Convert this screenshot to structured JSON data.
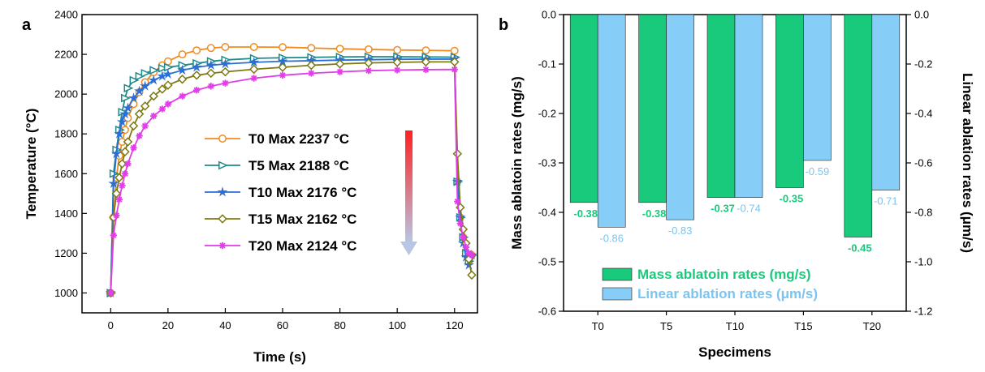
{
  "chart_data": [
    {
      "panel": "a",
      "type": "line",
      "xlabel": "Time (s)",
      "ylabel": "Temperature (°C)",
      "xlim": [
        -10,
        128
      ],
      "ylim": [
        900,
        2400
      ],
      "xticks": [
        0,
        20,
        40,
        60,
        80,
        100,
        120
      ],
      "yticks": [
        1000,
        1200,
        1400,
        1600,
        1800,
        2000,
        2200,
        2400
      ],
      "legend_position": "center",
      "arrow_colors": {
        "top": "#ff2020",
        "bottom": "#b8c6e4"
      },
      "series": [
        {
          "name": "T0",
          "label": "T0 Max 2237 °C",
          "color": "#f28a1f",
          "marker": "circle",
          "x": [
            0,
            1,
            2,
            3,
            4,
            5,
            6,
            8,
            10,
            12,
            15,
            18,
            20,
            25,
            30,
            35,
            40,
            50,
            60,
            70,
            80,
            90,
            100,
            110,
            120,
            121,
            122,
            123,
            124,
            125,
            126
          ],
          "y": [
            1000,
            1380,
            1580,
            1690,
            1760,
            1820,
            1880,
            1950,
            2010,
            2060,
            2110,
            2145,
            2165,
            2200,
            2220,
            2232,
            2237,
            2237,
            2236,
            2232,
            2228,
            2225,
            2222,
            2220,
            2218,
            1560,
            1380,
            1280,
            1200,
            1160,
            1190
          ]
        },
        {
          "name": "T5",
          "label": "T5 Max 2188 °C",
          "color": "#1f8a8a",
          "marker": "triangle-right",
          "x": [
            0,
            1,
            2,
            3,
            4,
            5,
            6,
            8,
            10,
            12,
            15,
            18,
            20,
            25,
            30,
            35,
            40,
            50,
            60,
            70,
            80,
            90,
            100,
            110,
            120,
            121,
            122,
            123,
            124,
            125,
            126
          ],
          "y": [
            1000,
            1600,
            1720,
            1820,
            1910,
            1980,
            2030,
            2070,
            2090,
            2105,
            2120,
            2130,
            2135,
            2145,
            2155,
            2165,
            2172,
            2180,
            2183,
            2185,
            2187,
            2188,
            2188,
            2187,
            2186,
            1560,
            1380,
            1280,
            1200,
            1160,
            1190
          ]
        },
        {
          "name": "T10",
          "label": "T10 Max 2176 °C",
          "color": "#2a6fd6",
          "marker": "star",
          "x": [
            0,
            1,
            2,
            3,
            4,
            5,
            6,
            8,
            10,
            12,
            15,
            18,
            20,
            25,
            30,
            35,
            40,
            50,
            60,
            70,
            80,
            90,
            100,
            110,
            120,
            121,
            122,
            123,
            124,
            125,
            126
          ],
          "y": [
            1000,
            1550,
            1700,
            1800,
            1860,
            1900,
            1930,
            1980,
            2015,
            2040,
            2070,
            2090,
            2100,
            2120,
            2135,
            2145,
            2152,
            2160,
            2165,
            2168,
            2171,
            2173,
            2175,
            2176,
            2176,
            1560,
            1380,
            1250,
            1180,
            1140,
            1190
          ]
        },
        {
          "name": "T15",
          "label": "T15 Max 2162 °C",
          "color": "#7d7a12",
          "marker": "diamond",
          "x": [
            0,
            1,
            2,
            3,
            4,
            5,
            6,
            8,
            10,
            12,
            15,
            18,
            20,
            25,
            30,
            35,
            40,
            50,
            60,
            70,
            80,
            90,
            100,
            110,
            120,
            121,
            122,
            123,
            124,
            125,
            126
          ],
          "y": [
            1000,
            1380,
            1500,
            1580,
            1650,
            1710,
            1760,
            1840,
            1900,
            1940,
            1990,
            2025,
            2045,
            2075,
            2095,
            2105,
            2112,
            2125,
            2135,
            2145,
            2152,
            2157,
            2160,
            2162,
            2162,
            1700,
            1430,
            1320,
            1250,
            1170,
            1090
          ]
        },
        {
          "name": "T20",
          "label": "T20 Max 2124 °C",
          "color": "#e13ee8",
          "marker": "asterisk",
          "x": [
            0,
            1,
            2,
            3,
            4,
            5,
            6,
            8,
            10,
            12,
            15,
            18,
            20,
            25,
            30,
            35,
            40,
            50,
            60,
            70,
            80,
            90,
            100,
            110,
            120,
            121,
            122,
            123,
            124,
            125,
            126
          ],
          "y": [
            1000,
            1290,
            1390,
            1470,
            1540,
            1600,
            1650,
            1730,
            1790,
            1840,
            1890,
            1925,
            1950,
            1990,
            2020,
            2040,
            2055,
            2080,
            2095,
            2105,
            2112,
            2118,
            2121,
            2123,
            2124,
            1460,
            1350,
            1280,
            1230,
            1200,
            1190
          ]
        }
      ]
    },
    {
      "panel": "b",
      "type": "bar",
      "xlabel": "Specimens",
      "ylabel": "Mass ablatoin rates (mg/s)",
      "y2label": "Linear ablation rates (μm/s)",
      "categories": [
        "T0",
        "T5",
        "T10",
        "T15",
        "T20"
      ],
      "ylim": [
        -0.6,
        0.0
      ],
      "yticks": [
        0.0,
        -0.1,
        -0.2,
        -0.3,
        -0.4,
        -0.5,
        -0.6
      ],
      "ytick_labels": [
        "0.0",
        "-0.1",
        "-0.2",
        "-0.3",
        "-0.4",
        "-0.5",
        "-0.6"
      ],
      "y2lim": [
        -1.2,
        0.0
      ],
      "y2ticks": [
        0.0,
        -0.2,
        -0.4,
        -0.6,
        -0.8,
        -1.0,
        -1.2
      ],
      "y2tick_labels": [
        "0.0",
        "-0.2",
        "-0.4",
        "-0.6",
        "-0.8",
        "-1.0",
        "-1.2"
      ],
      "legend_position": "bottom-right",
      "series": [
        {
          "name": "Mass ablatoin rates (mg/s)",
          "axis": "left",
          "color": "#19c97c",
          "label_color": "#19c97c",
          "values": [
            -0.38,
            -0.38,
            -0.37,
            -0.35,
            -0.45
          ],
          "labels": [
            "-0.38",
            "-0.38",
            "-0.37",
            "-0.35",
            "-0.45"
          ]
        },
        {
          "name": "Linear ablation rates (μm/s)",
          "axis": "right",
          "color": "#86cdf7",
          "label_color": "#7cc4ef",
          "values": [
            -0.86,
            -0.83,
            -0.74,
            -0.59,
            -0.71
          ],
          "labels": [
            "-0.86",
            "-0.83",
            "-0.74",
            "-0.59",
            "-0.71"
          ]
        }
      ]
    }
  ]
}
